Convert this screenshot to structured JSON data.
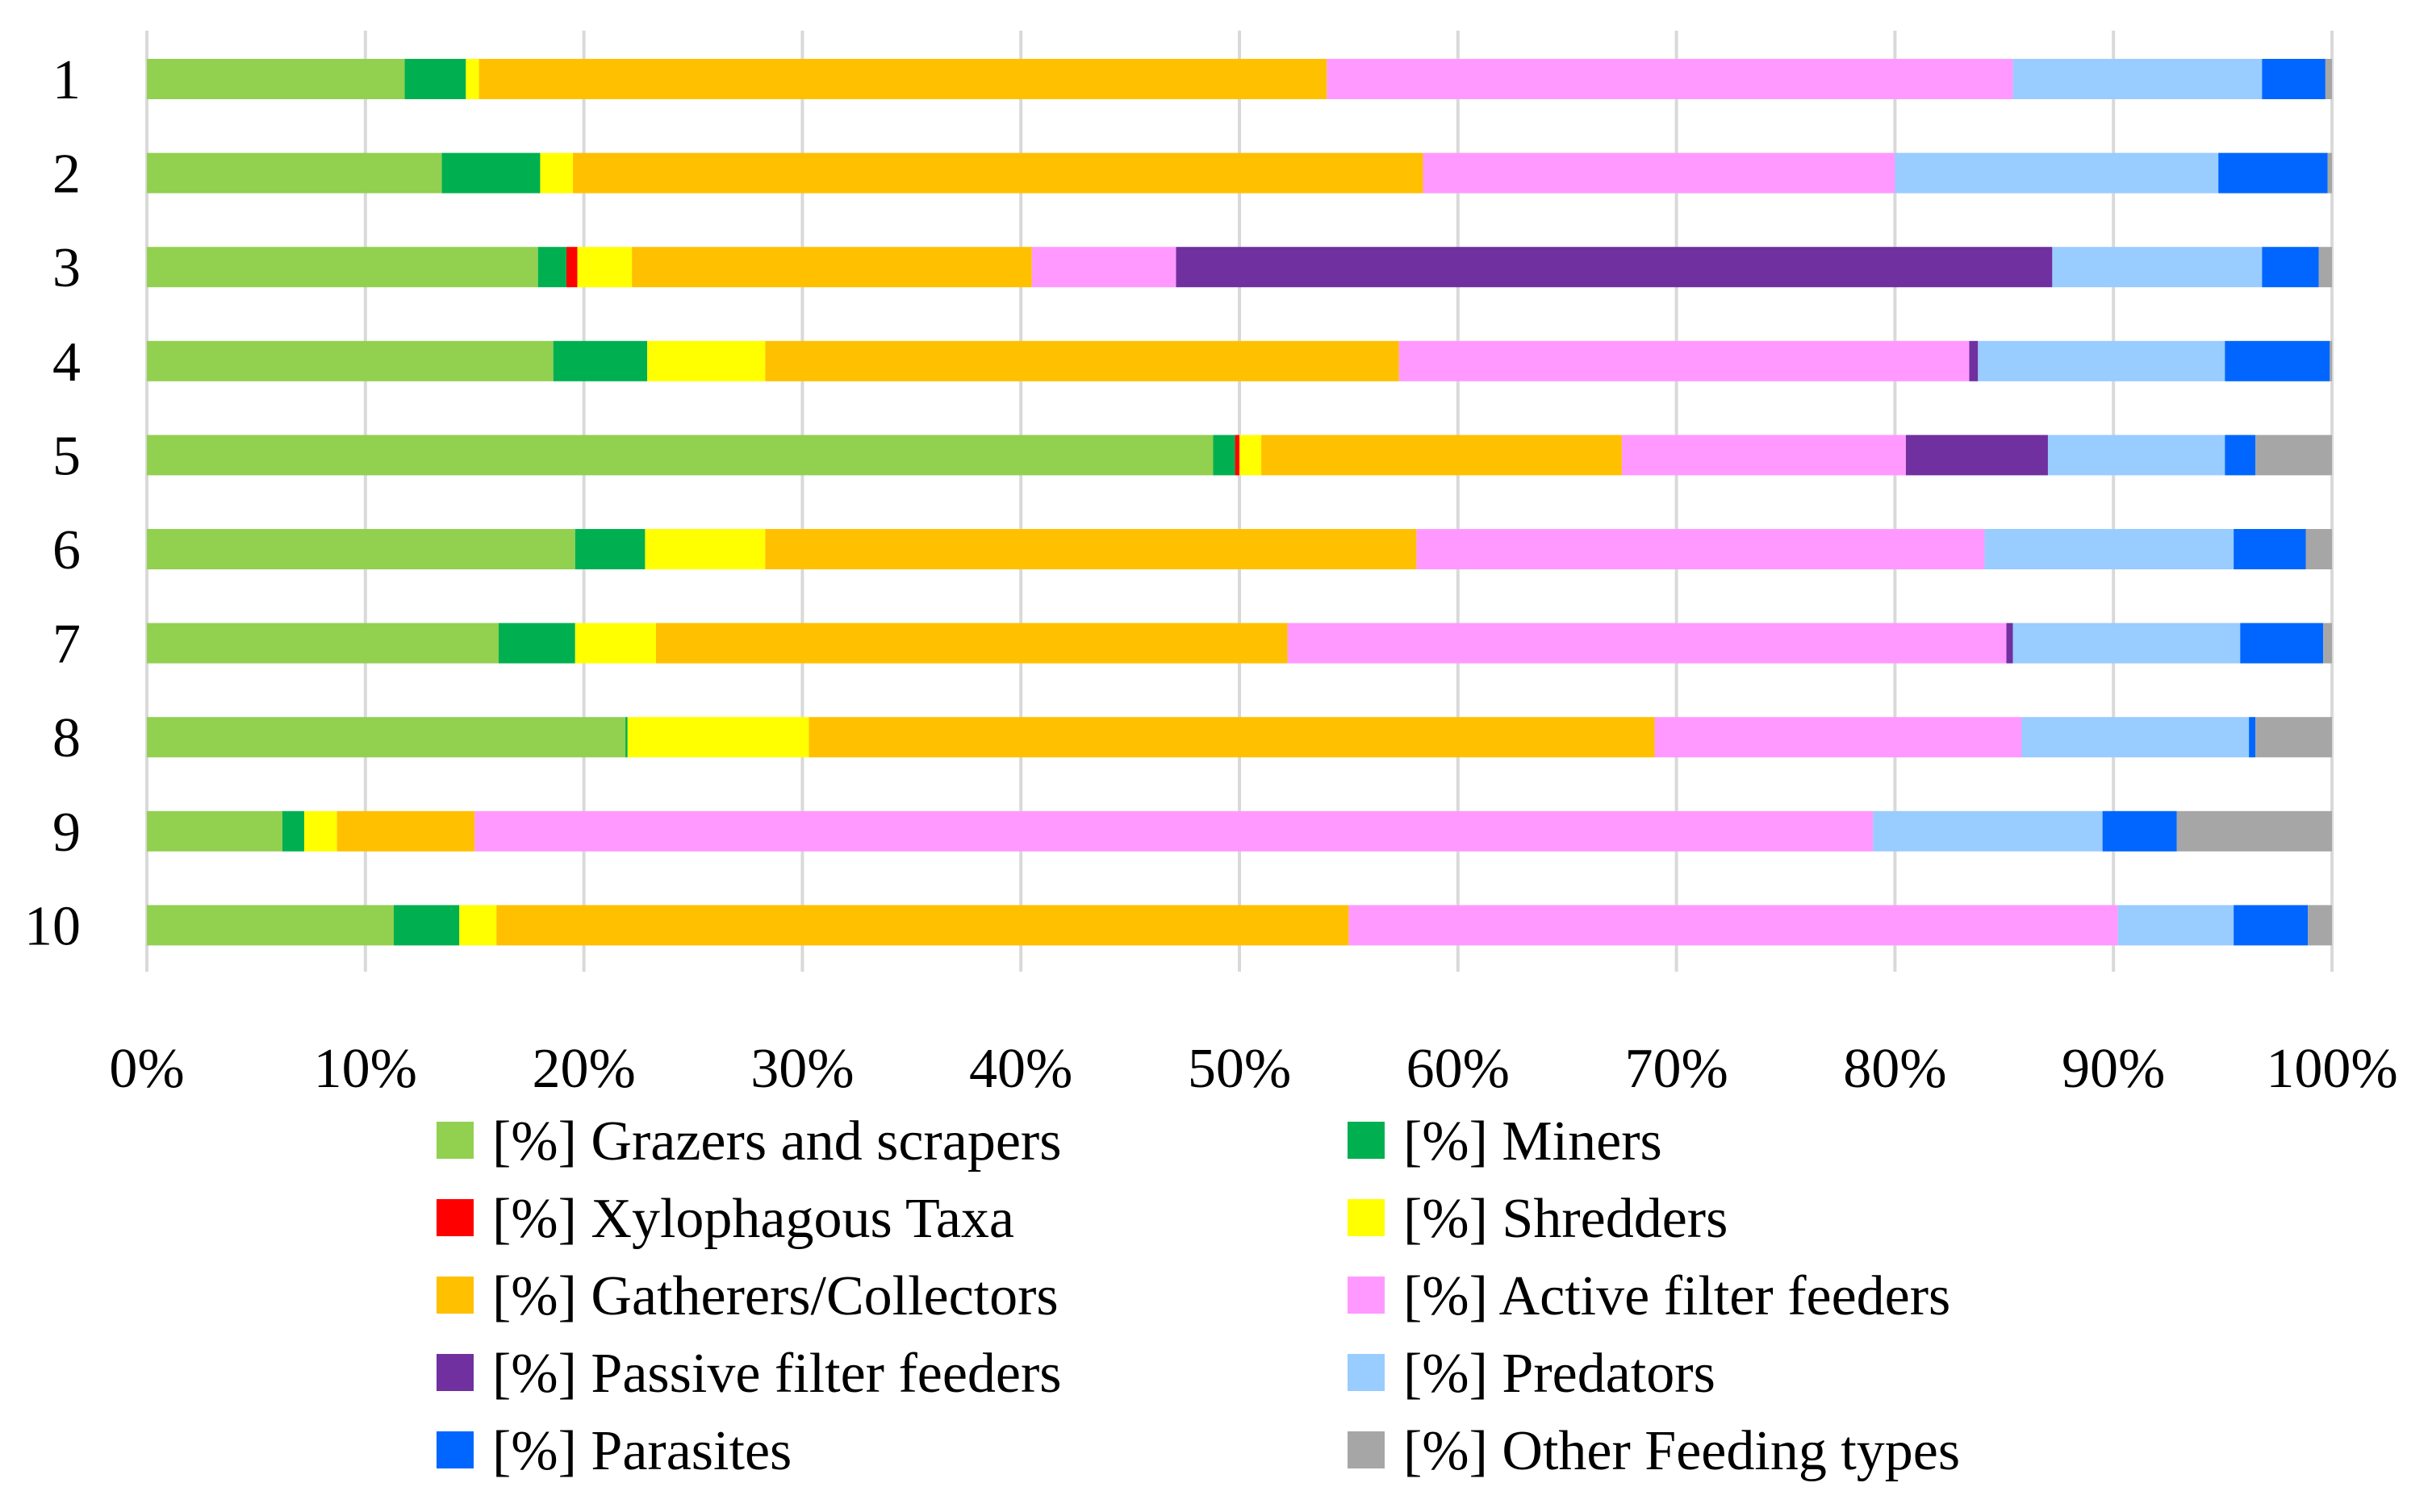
{
  "chart_data": {
    "type": "bar",
    "orientation": "horizontal",
    "stacked": "percent",
    "title": "",
    "xlabel": "",
    "ylabel": "",
    "xlim": [
      0,
      100
    ],
    "grid": true,
    "legend_position": "bottom",
    "categories": [
      "1",
      "2",
      "3",
      "4",
      "5",
      "6",
      "7",
      "8",
      "9",
      "10"
    ],
    "x_tick_labels": [
      "0%",
      "10%",
      "20%",
      "30%",
      "40%",
      "50%",
      "60%",
      "70%",
      "80%",
      "90%",
      "100%"
    ],
    "series": [
      {
        "name": "[%] Grazers and scrapers",
        "color": "#92d050",
        "values": [
          11.8,
          13.5,
          17.9,
          18.6,
          48.8,
          19.6,
          16.1,
          21.9,
          6.2,
          11.3
        ]
      },
      {
        "name": "[%] Miners",
        "color": "#00b050",
        "values": [
          2.8,
          4.5,
          1.3,
          4.3,
          1.0,
          3.2,
          3.5,
          0.1,
          1.0,
          3.0
        ]
      },
      {
        "name": "[%] Xylophagous Taxa",
        "color": "#ff0000",
        "values": [
          0,
          0,
          0.5,
          0,
          0.2,
          0,
          0,
          0,
          0,
          0
        ]
      },
      {
        "name": "[%] Shredders",
        "color": "#ffff00",
        "values": [
          0.6,
          1.5,
          2.5,
          5.4,
          1.0,
          5.5,
          3.7,
          8.3,
          1.5,
          1.7
        ]
      },
      {
        "name": "[%] Gatherers/Collectors",
        "color": "#ffc000",
        "values": [
          38.8,
          38.9,
          18.3,
          29.0,
          16.5,
          29.8,
          28.9,
          38.7,
          6.3,
          39.0
        ]
      },
      {
        "name": "[%] Active filter feeders",
        "color": "#ff99ff",
        "values": [
          31.4,
          21.6,
          6.6,
          26.1,
          13.0,
          26.0,
          32.9,
          16.8,
          64.0,
          35.2
        ]
      },
      {
        "name": "[%] Passive filter feeders",
        "color": "#7030a0",
        "values": [
          0,
          0,
          40.1,
          0.4,
          6.5,
          0,
          0.3,
          0,
          0,
          0
        ]
      },
      {
        "name": "[%] Predators",
        "color": "#99ccff",
        "values": [
          11.4,
          14.8,
          9.6,
          11.3,
          8.1,
          11.4,
          10.4,
          10.4,
          10.5,
          5.3
        ]
      },
      {
        "name": "[%] Parasites",
        "color": "#0066ff",
        "values": [
          2.9,
          5.0,
          2.6,
          4.8,
          1.4,
          3.3,
          3.8,
          0.3,
          3.4,
          3.4
        ]
      },
      {
        "name": "[%] Other Feeding types",
        "color": "#a6a6a6",
        "values": [
          0.3,
          0.2,
          0.6,
          0.1,
          3.5,
          1.2,
          0.4,
          3.5,
          7.1,
          1.1
        ]
      }
    ]
  }
}
